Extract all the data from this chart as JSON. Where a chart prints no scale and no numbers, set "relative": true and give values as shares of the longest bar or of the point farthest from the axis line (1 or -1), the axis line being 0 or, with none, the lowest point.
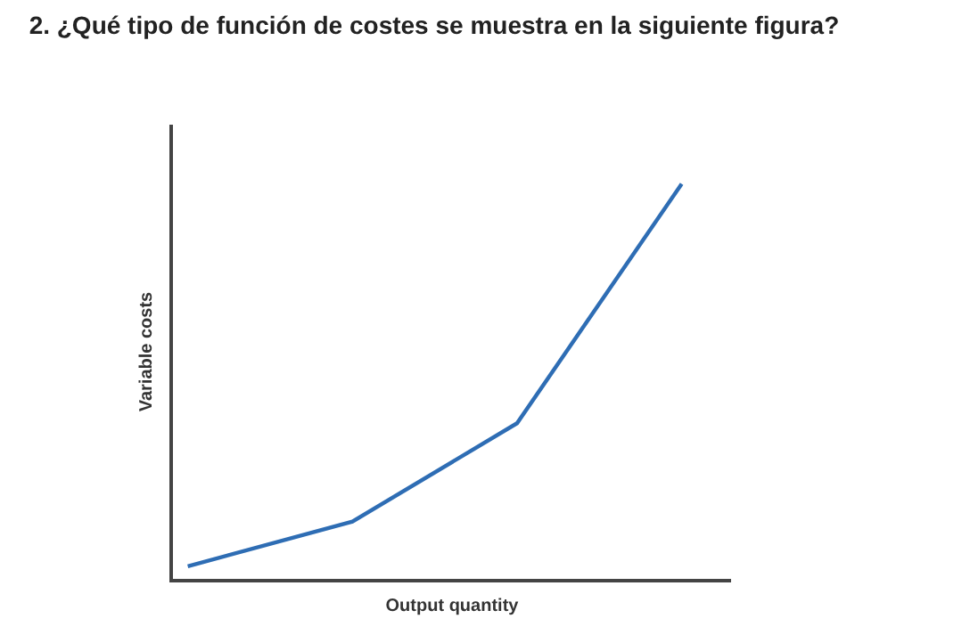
{
  "chart_data": {
    "type": "line",
    "title": "2. ¿Qué tipo de función de costes se muestra en la siguiente figura?",
    "xlabel": "Output quantity",
    "ylabel": "Variable costs",
    "relative": true,
    "categories": [
      null,
      null,
      null,
      null
    ],
    "series": [
      {
        "color": "#2e6db4",
        "values": [
          0.032,
          0.145,
          0.394,
          1
        ]
      }
    ]
  }
}
